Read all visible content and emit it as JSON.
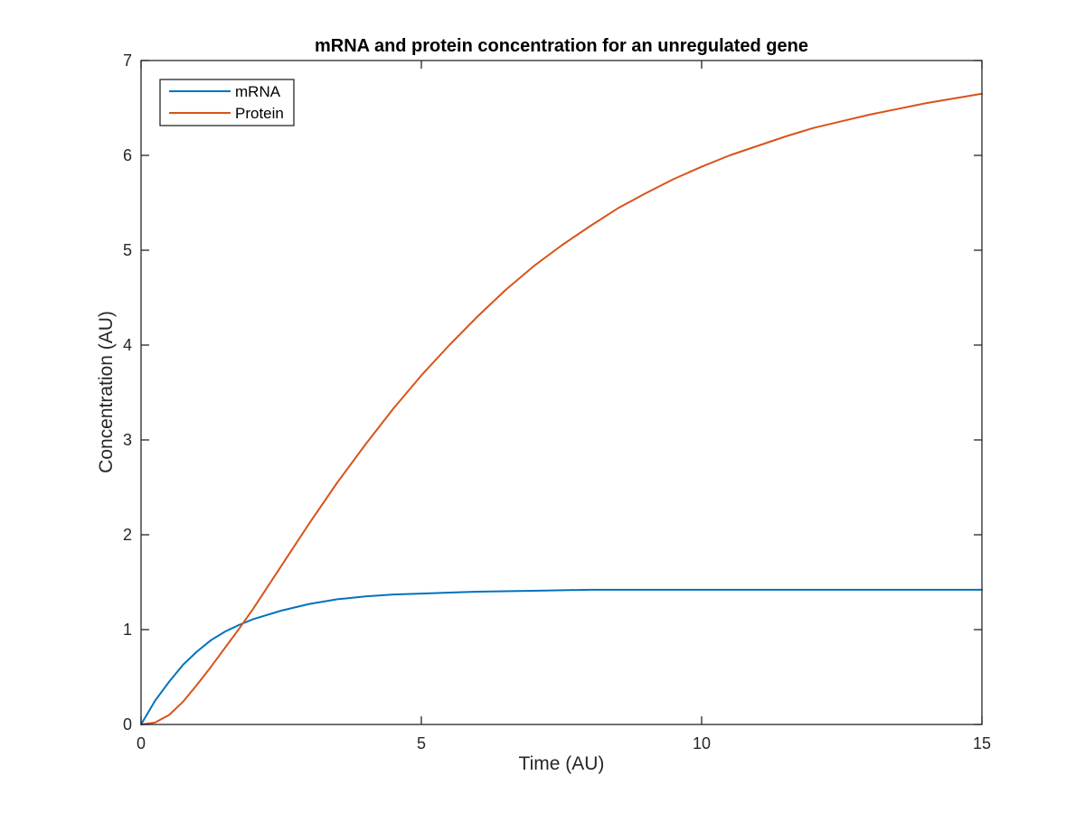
{
  "chart_data": {
    "type": "line",
    "title": "mRNA and protein concentration for an unregulated gene",
    "xlabel": "Time (AU)",
    "ylabel": "Concentration (AU)",
    "xlim": [
      0,
      15
    ],
    "ylim": [
      0,
      7
    ],
    "xticks": [
      "0",
      "5",
      "10",
      "15"
    ],
    "yticks": [
      "0",
      "1",
      "2",
      "3",
      "4",
      "5",
      "6",
      "7"
    ],
    "grid": false,
    "legend_position": "top-left",
    "series": [
      {
        "name": "mRNA",
        "color": "#0072BD",
        "x": [
          0,
          0.25,
          0.5,
          0.75,
          1,
          1.25,
          1.5,
          1.75,
          2,
          2.5,
          3,
          3.5,
          4,
          4.5,
          5,
          5.5,
          6,
          7,
          8,
          9,
          10,
          11,
          12,
          13,
          14,
          15
        ],
        "y": [
          0,
          0.25,
          0.45,
          0.63,
          0.77,
          0.89,
          0.98,
          1.05,
          1.11,
          1.2,
          1.27,
          1.32,
          1.35,
          1.37,
          1.38,
          1.39,
          1.4,
          1.41,
          1.42,
          1.42,
          1.42,
          1.42,
          1.42,
          1.42,
          1.42,
          1.42
        ]
      },
      {
        "name": "Protein",
        "color": "#D95319",
        "x": [
          0,
          0.25,
          0.5,
          0.75,
          1,
          1.25,
          1.5,
          1.75,
          2,
          2.5,
          3,
          3.5,
          4,
          4.5,
          5,
          5.5,
          6,
          6.5,
          7,
          7.5,
          8,
          8.5,
          9,
          9.5,
          10,
          10.5,
          11,
          11.5,
          12,
          12.5,
          13,
          13.5,
          14,
          14.5,
          15
        ],
        "y": [
          0,
          0.02,
          0.1,
          0.24,
          0.42,
          0.61,
          0.81,
          1.01,
          1.22,
          1.67,
          2.12,
          2.55,
          2.95,
          3.33,
          3.68,
          4.0,
          4.3,
          4.58,
          4.83,
          5.05,
          5.25,
          5.44,
          5.6,
          5.75,
          5.88,
          6.0,
          6.1,
          6.2,
          6.29,
          6.36,
          6.43,
          6.49,
          6.55,
          6.6,
          6.65
        ]
      }
    ]
  }
}
